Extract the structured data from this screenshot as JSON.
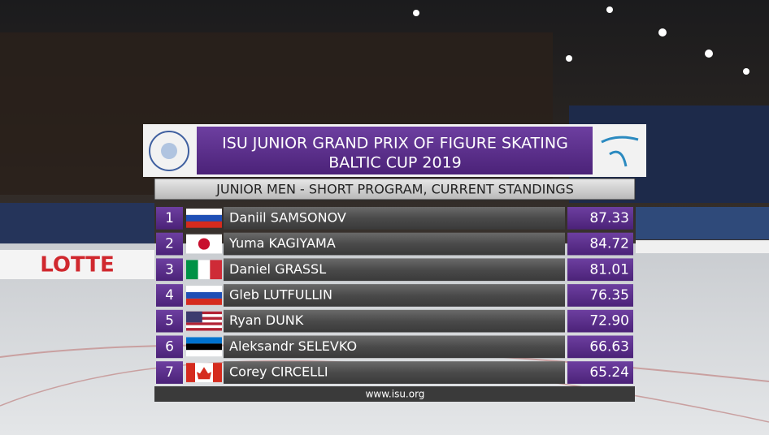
{
  "header": {
    "title": "ISU JUNIOR GRAND PRIX OF FIGURE SKATING",
    "subtitle": "BALTIC CUP 2019"
  },
  "event": "JUNIOR MEN - SHORT PROGRAM, CURRENT STANDINGS",
  "rows": [
    {
      "rank": "1",
      "name": "Daniil SAMSONOV",
      "score": "87.33"
    },
    {
      "rank": "2",
      "name": "Yuma KAGIYAMA",
      "score": "84.72"
    },
    {
      "rank": "3",
      "name": "Daniel GRASSL",
      "score": "81.01"
    },
    {
      "rank": "4",
      "name": "Gleb LUTFULLIN",
      "score": "76.35"
    },
    {
      "rank": "5",
      "name": "Ryan DUNK",
      "score": "72.90"
    },
    {
      "rank": "6",
      "name": "Aleksandr SELEVKO",
      "score": "66.63"
    },
    {
      "rank": "7",
      "name": "Corey CIRCELLI",
      "score": "65.24"
    }
  ],
  "footer": "www.isu.org",
  "sign": "LOTTE"
}
